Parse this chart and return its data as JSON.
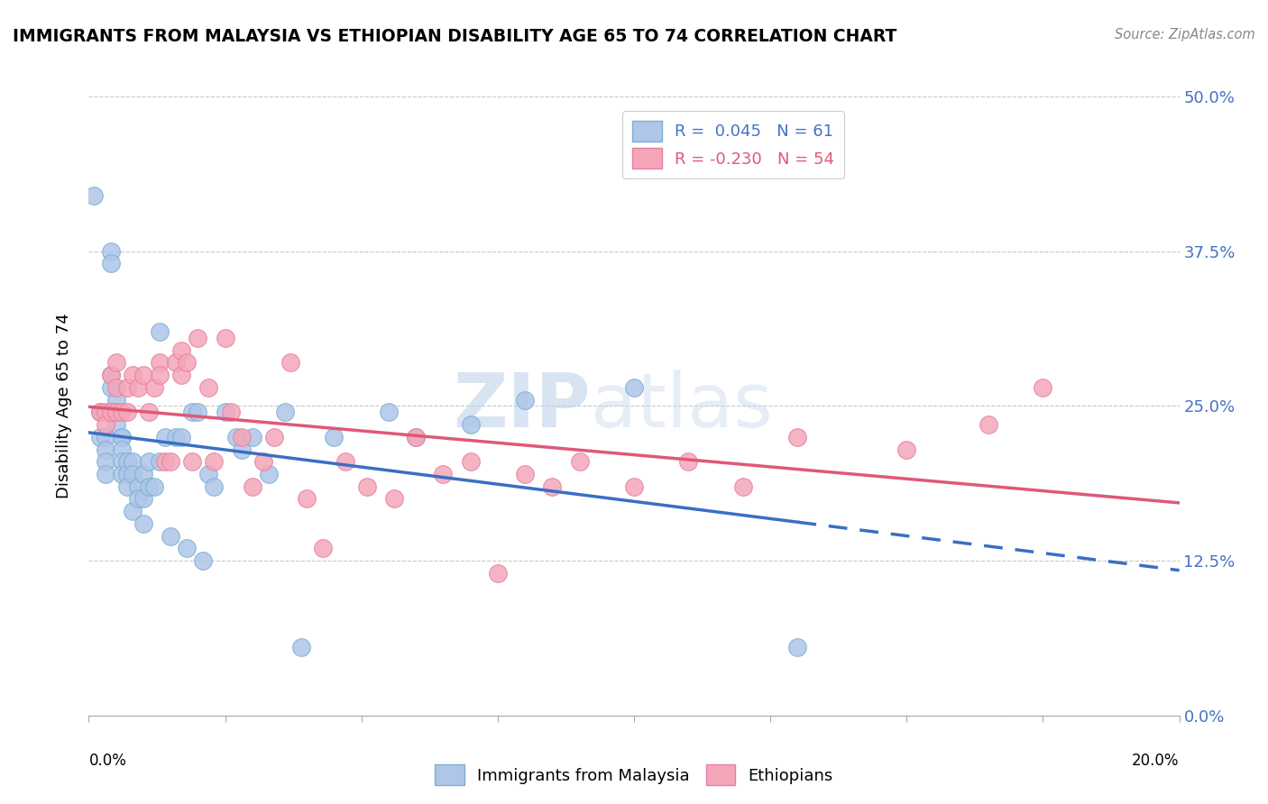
{
  "title": "IMMIGRANTS FROM MALAYSIA VS ETHIOPIAN DISABILITY AGE 65 TO 74 CORRELATION CHART",
  "source": "Source: ZipAtlas.com",
  "ylabel": "Disability Age 65 to 74",
  "ytick_labels": [
    "0.0%",
    "12.5%",
    "25.0%",
    "37.5%",
    "50.0%"
  ],
  "ytick_values": [
    0.0,
    0.125,
    0.25,
    0.375,
    0.5
  ],
  "xlim": [
    0.0,
    0.2
  ],
  "ylim": [
    0.0,
    0.5
  ],
  "malaysia_R": 0.045,
  "malaysia_N": 61,
  "ethiopia_R": -0.23,
  "ethiopia_N": 54,
  "malaysia_color": "#aec6e8",
  "malaysia_edge": "#7bafd4",
  "ethiopia_color": "#f4a7b9",
  "ethiopia_edge": "#e87fa0",
  "trend_malaysia_color": "#3a6fc4",
  "trend_ethiopia_color": "#e05878",
  "malaysia_points_x": [
    0.001,
    0.002,
    0.002,
    0.003,
    0.003,
    0.003,
    0.003,
    0.004,
    0.004,
    0.004,
    0.004,
    0.004,
    0.005,
    0.005,
    0.005,
    0.005,
    0.006,
    0.006,
    0.006,
    0.006,
    0.006,
    0.007,
    0.007,
    0.007,
    0.008,
    0.008,
    0.008,
    0.009,
    0.009,
    0.01,
    0.01,
    0.01,
    0.011,
    0.011,
    0.012,
    0.013,
    0.013,
    0.014,
    0.015,
    0.016,
    0.017,
    0.018,
    0.019,
    0.02,
    0.021,
    0.022,
    0.023,
    0.025,
    0.027,
    0.028,
    0.03,
    0.033,
    0.036,
    0.039,
    0.045,
    0.055,
    0.06,
    0.07,
    0.08,
    0.1,
    0.13
  ],
  "malaysia_points_y": [
    0.42,
    0.245,
    0.225,
    0.225,
    0.215,
    0.205,
    0.195,
    0.375,
    0.365,
    0.275,
    0.265,
    0.245,
    0.255,
    0.245,
    0.245,
    0.235,
    0.225,
    0.225,
    0.215,
    0.205,
    0.195,
    0.205,
    0.195,
    0.185,
    0.205,
    0.195,
    0.165,
    0.185,
    0.175,
    0.195,
    0.175,
    0.155,
    0.205,
    0.185,
    0.185,
    0.31,
    0.205,
    0.225,
    0.145,
    0.225,
    0.225,
    0.135,
    0.245,
    0.245,
    0.125,
    0.195,
    0.185,
    0.245,
    0.225,
    0.215,
    0.225,
    0.195,
    0.245,
    0.055,
    0.225,
    0.245,
    0.225,
    0.235,
    0.255,
    0.265,
    0.055
  ],
  "ethiopia_points_x": [
    0.002,
    0.003,
    0.003,
    0.004,
    0.004,
    0.005,
    0.005,
    0.005,
    0.006,
    0.007,
    0.007,
    0.008,
    0.009,
    0.01,
    0.011,
    0.012,
    0.013,
    0.013,
    0.014,
    0.015,
    0.016,
    0.017,
    0.017,
    0.018,
    0.019,
    0.02,
    0.022,
    0.023,
    0.025,
    0.026,
    0.028,
    0.03,
    0.032,
    0.034,
    0.037,
    0.04,
    0.043,
    0.047,
    0.051,
    0.056,
    0.06,
    0.065,
    0.07,
    0.075,
    0.08,
    0.085,
    0.09,
    0.1,
    0.11,
    0.12,
    0.13,
    0.15,
    0.165,
    0.175
  ],
  "ethiopia_points_y": [
    0.245,
    0.245,
    0.235,
    0.275,
    0.245,
    0.285,
    0.265,
    0.245,
    0.245,
    0.265,
    0.245,
    0.275,
    0.265,
    0.275,
    0.245,
    0.265,
    0.285,
    0.275,
    0.205,
    0.205,
    0.285,
    0.295,
    0.275,
    0.285,
    0.205,
    0.305,
    0.265,
    0.205,
    0.305,
    0.245,
    0.225,
    0.185,
    0.205,
    0.225,
    0.285,
    0.175,
    0.135,
    0.205,
    0.185,
    0.175,
    0.225,
    0.195,
    0.205,
    0.115,
    0.195,
    0.185,
    0.205,
    0.185,
    0.205,
    0.185,
    0.225,
    0.215,
    0.235,
    0.265
  ],
  "watermark_zip": "ZIP",
  "watermark_atlas": "atlas",
  "legend_label_1": "Immigrants from Malaysia",
  "legend_label_2": "Ethiopians"
}
